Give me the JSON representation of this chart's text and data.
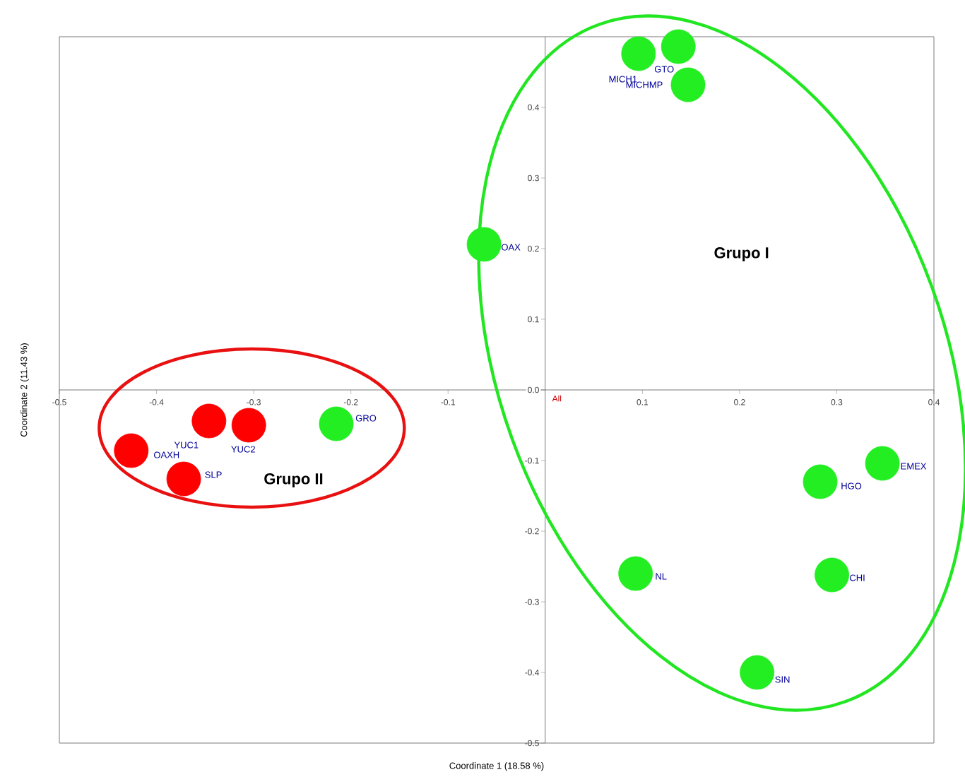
{
  "chart_data": {
    "type": "scatter",
    "xlabel": "Coordinate 1 (18.58 %)",
    "ylabel": "Coordinate 2 (11.43 %)",
    "xlim": [
      -0.5,
      0.4
    ],
    "ylim": [
      -0.5,
      0.5
    ],
    "xticks": [
      -0.5,
      -0.4,
      -0.3,
      -0.2,
      -0.1,
      0.1,
      0.2,
      0.3,
      0.4
    ],
    "yticks": [
      -0.5,
      -0.4,
      -0.3,
      -0.2,
      -0.1,
      {
        "value": 0,
        "label": "0.0"
      },
      0.1,
      0.2,
      0.3,
      0.4
    ],
    "marker": "circle",
    "grid": false,
    "legend": false,
    "series": [
      {
        "color": "#22ee22",
        "x": [
          0.096,
          0.137,
          0.147,
          -0.063,
          -0.215,
          0.347,
          0.283,
          0.093,
          0.295,
          0.218
        ],
        "values": [
          0.476,
          0.486,
          0.432,
          0.206,
          -0.048,
          -0.104,
          -0.13,
          -0.26,
          -0.262,
          -0.4
        ]
      },
      {
        "color": "#ff0000",
        "x": [
          -0.346,
          -0.305,
          -0.426,
          -0.372
        ],
        "values": [
          -0.044,
          -0.05,
          -0.086,
          -0.126
        ]
      }
    ],
    "annotations": [
      {
        "text": "MICH1",
        "x": 0.096,
        "y": 0.476
      },
      {
        "text": "GTO",
        "x": 0.137,
        "y": 0.486
      },
      {
        "text": "MICHMP",
        "x": 0.147,
        "y": 0.432
      },
      {
        "text": "OAX",
        "x": -0.063,
        "y": 0.206
      },
      {
        "text": "GRO",
        "x": -0.215,
        "y": -0.048
      },
      {
        "text": "YUC1",
        "x": -0.346,
        "y": -0.044
      },
      {
        "text": "YUC2",
        "x": -0.305,
        "y": -0.05
      },
      {
        "text": "OAXH",
        "x": -0.426,
        "y": -0.086
      },
      {
        "text": "SLP",
        "x": -0.372,
        "y": -0.126
      },
      {
        "text": "EMEX",
        "x": 0.347,
        "y": -0.104
      },
      {
        "text": "HGO",
        "x": 0.283,
        "y": -0.13
      },
      {
        "text": "NL",
        "x": 0.093,
        "y": -0.26
      },
      {
        "text": "CHI",
        "x": 0.295,
        "y": -0.262
      },
      {
        "text": "SIN",
        "x": 0.218,
        "y": -0.4
      },
      "All",
      "Grupo I",
      "Grupo II"
    ]
  }
}
